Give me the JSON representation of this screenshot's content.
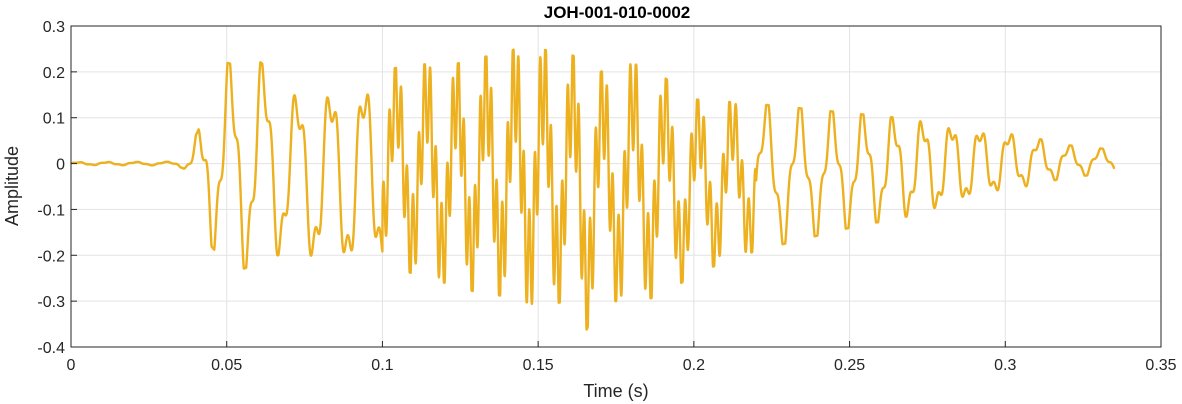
{
  "chart_data": {
    "type": "line",
    "title": "JOH-001-010-0002",
    "xlabel": "Time (s)",
    "ylabel": "Amplitude",
    "xlim": [
      0,
      0.35
    ],
    "ylim": [
      -0.4,
      0.3
    ],
    "xticks": [
      "0",
      "0.05",
      "0.1",
      "0.15",
      "0.2",
      "0.25",
      "0.3",
      "0.35"
    ],
    "yticks": [
      "0.3",
      "0.2",
      "0.1",
      "0",
      "-0.1",
      "-0.2",
      "-0.3",
      "-0.4"
    ],
    "grid": true,
    "series": [
      {
        "color": "#EDB120",
        "envelope_x": [
          0,
          0.033,
          0.036,
          0.038,
          0.04,
          0.042,
          0.045,
          0.05,
          0.055,
          0.06,
          0.065,
          0.07,
          0.08,
          0.09,
          0.1,
          0.11,
          0.12,
          0.13,
          0.14,
          0.145,
          0.15,
          0.16,
          0.165,
          0.17,
          0.18,
          0.19,
          0.2,
          0.22,
          0.25,
          0.28,
          0.3,
          0.32,
          0.335
        ],
        "envelope_max": [
          0.003,
          0.004,
          0.012,
          0.03,
          0.06,
          0.09,
          0.2,
          0.22,
          0.21,
          0.225,
          0.2,
          0.15,
          0.17,
          0.16,
          0.2,
          0.22,
          0.21,
          0.23,
          0.24,
          0.26,
          0.25,
          0.24,
          0.22,
          0.2,
          0.22,
          0.19,
          0.14,
          0.13,
          0.11,
          0.09,
          0.07,
          0.04,
          0.03
        ],
        "envelope_min": [
          -0.003,
          -0.004,
          -0.01,
          -0.03,
          -0.06,
          -0.12,
          -0.18,
          -0.22,
          -0.23,
          -0.22,
          -0.2,
          -0.2,
          -0.22,
          -0.23,
          -0.22,
          -0.24,
          -0.26,
          -0.28,
          -0.29,
          -0.3,
          -0.31,
          -0.3,
          -0.37,
          -0.3,
          -0.3,
          -0.29,
          -0.24,
          -0.19,
          -0.14,
          -0.1,
          -0.06,
          -0.03,
          -0.02
        ],
        "f0_hz": 100
      }
    ]
  }
}
